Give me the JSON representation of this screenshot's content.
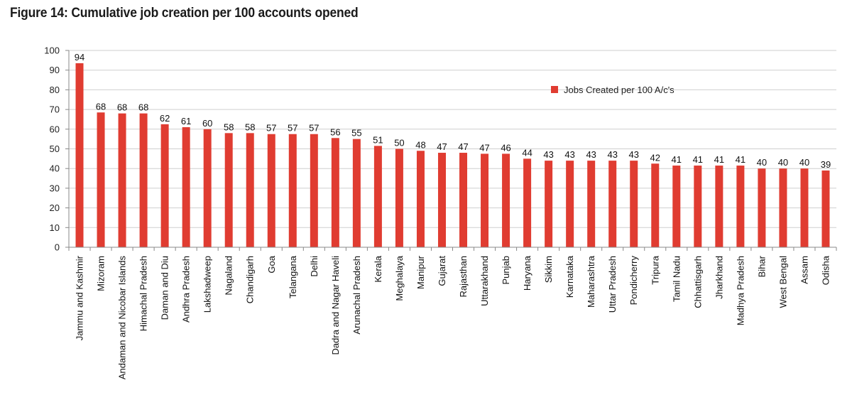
{
  "figure_title": "Figure 14: Cumulative job creation per 100 accounts opened",
  "chart_data": {
    "type": "bar",
    "categories": [
      "Jammu and Kashmir",
      "Mizoram",
      "Andaman and Nicobar Islands",
      "Himachal Pradesh",
      "Daman and Diu",
      "Andhra Pradesh",
      "Lakshadweep",
      "Nagaland",
      "Chandigarh",
      "Goa",
      "Telangana",
      "Delhi",
      "Dadra and Nagar Haveli",
      "Arunachal Pradesh",
      "Kerala",
      "Meghalaya",
      "Manipur",
      "Gujarat",
      "Rajasthan",
      "Uttarakhand",
      "Punjab",
      "Haryana",
      "Sikkim",
      "Karnataka",
      "Maharashtra",
      "Uttar Pradesh",
      "Pondicherry",
      "Tripura",
      "Tamil Nadu",
      "Chhattisgarh",
      "Jharkhand",
      "Madhya Pradesh",
      "Bihar",
      "West Bengal",
      "Assam",
      "Odisha"
    ],
    "series": [
      {
        "name": "Jobs Created per 100 A/c's",
        "values": [
          94,
          68,
          68,
          68,
          62,
          61,
          60,
          58,
          58,
          57,
          57,
          57,
          56,
          55,
          51,
          50,
          48,
          47,
          47,
          47,
          46,
          44,
          43,
          43,
          43,
          43,
          43,
          42,
          41,
          41,
          41,
          41,
          40,
          40,
          40,
          39
        ],
        "value_positions": [
          93.5,
          68.5,
          68,
          68,
          62.5,
          61,
          60,
          58,
          58,
          57.5,
          57.5,
          57.5,
          55.5,
          55,
          51.5,
          50,
          49,
          48,
          48,
          47.5,
          47.5,
          45,
          44,
          44,
          44,
          44,
          44,
          42.5,
          41.5,
          41.5,
          41.5,
          41.5,
          40,
          40,
          40,
          39
        ]
      }
    ],
    "title": "",
    "xlabel": "",
    "ylabel": "",
    "ylim": [
      0,
      100
    ],
    "yticks": [
      0,
      10,
      20,
      30,
      40,
      50,
      60,
      70,
      80,
      90,
      100
    ],
    "grid": true,
    "legend": "top-right",
    "bar_color": "#e03c31"
  }
}
